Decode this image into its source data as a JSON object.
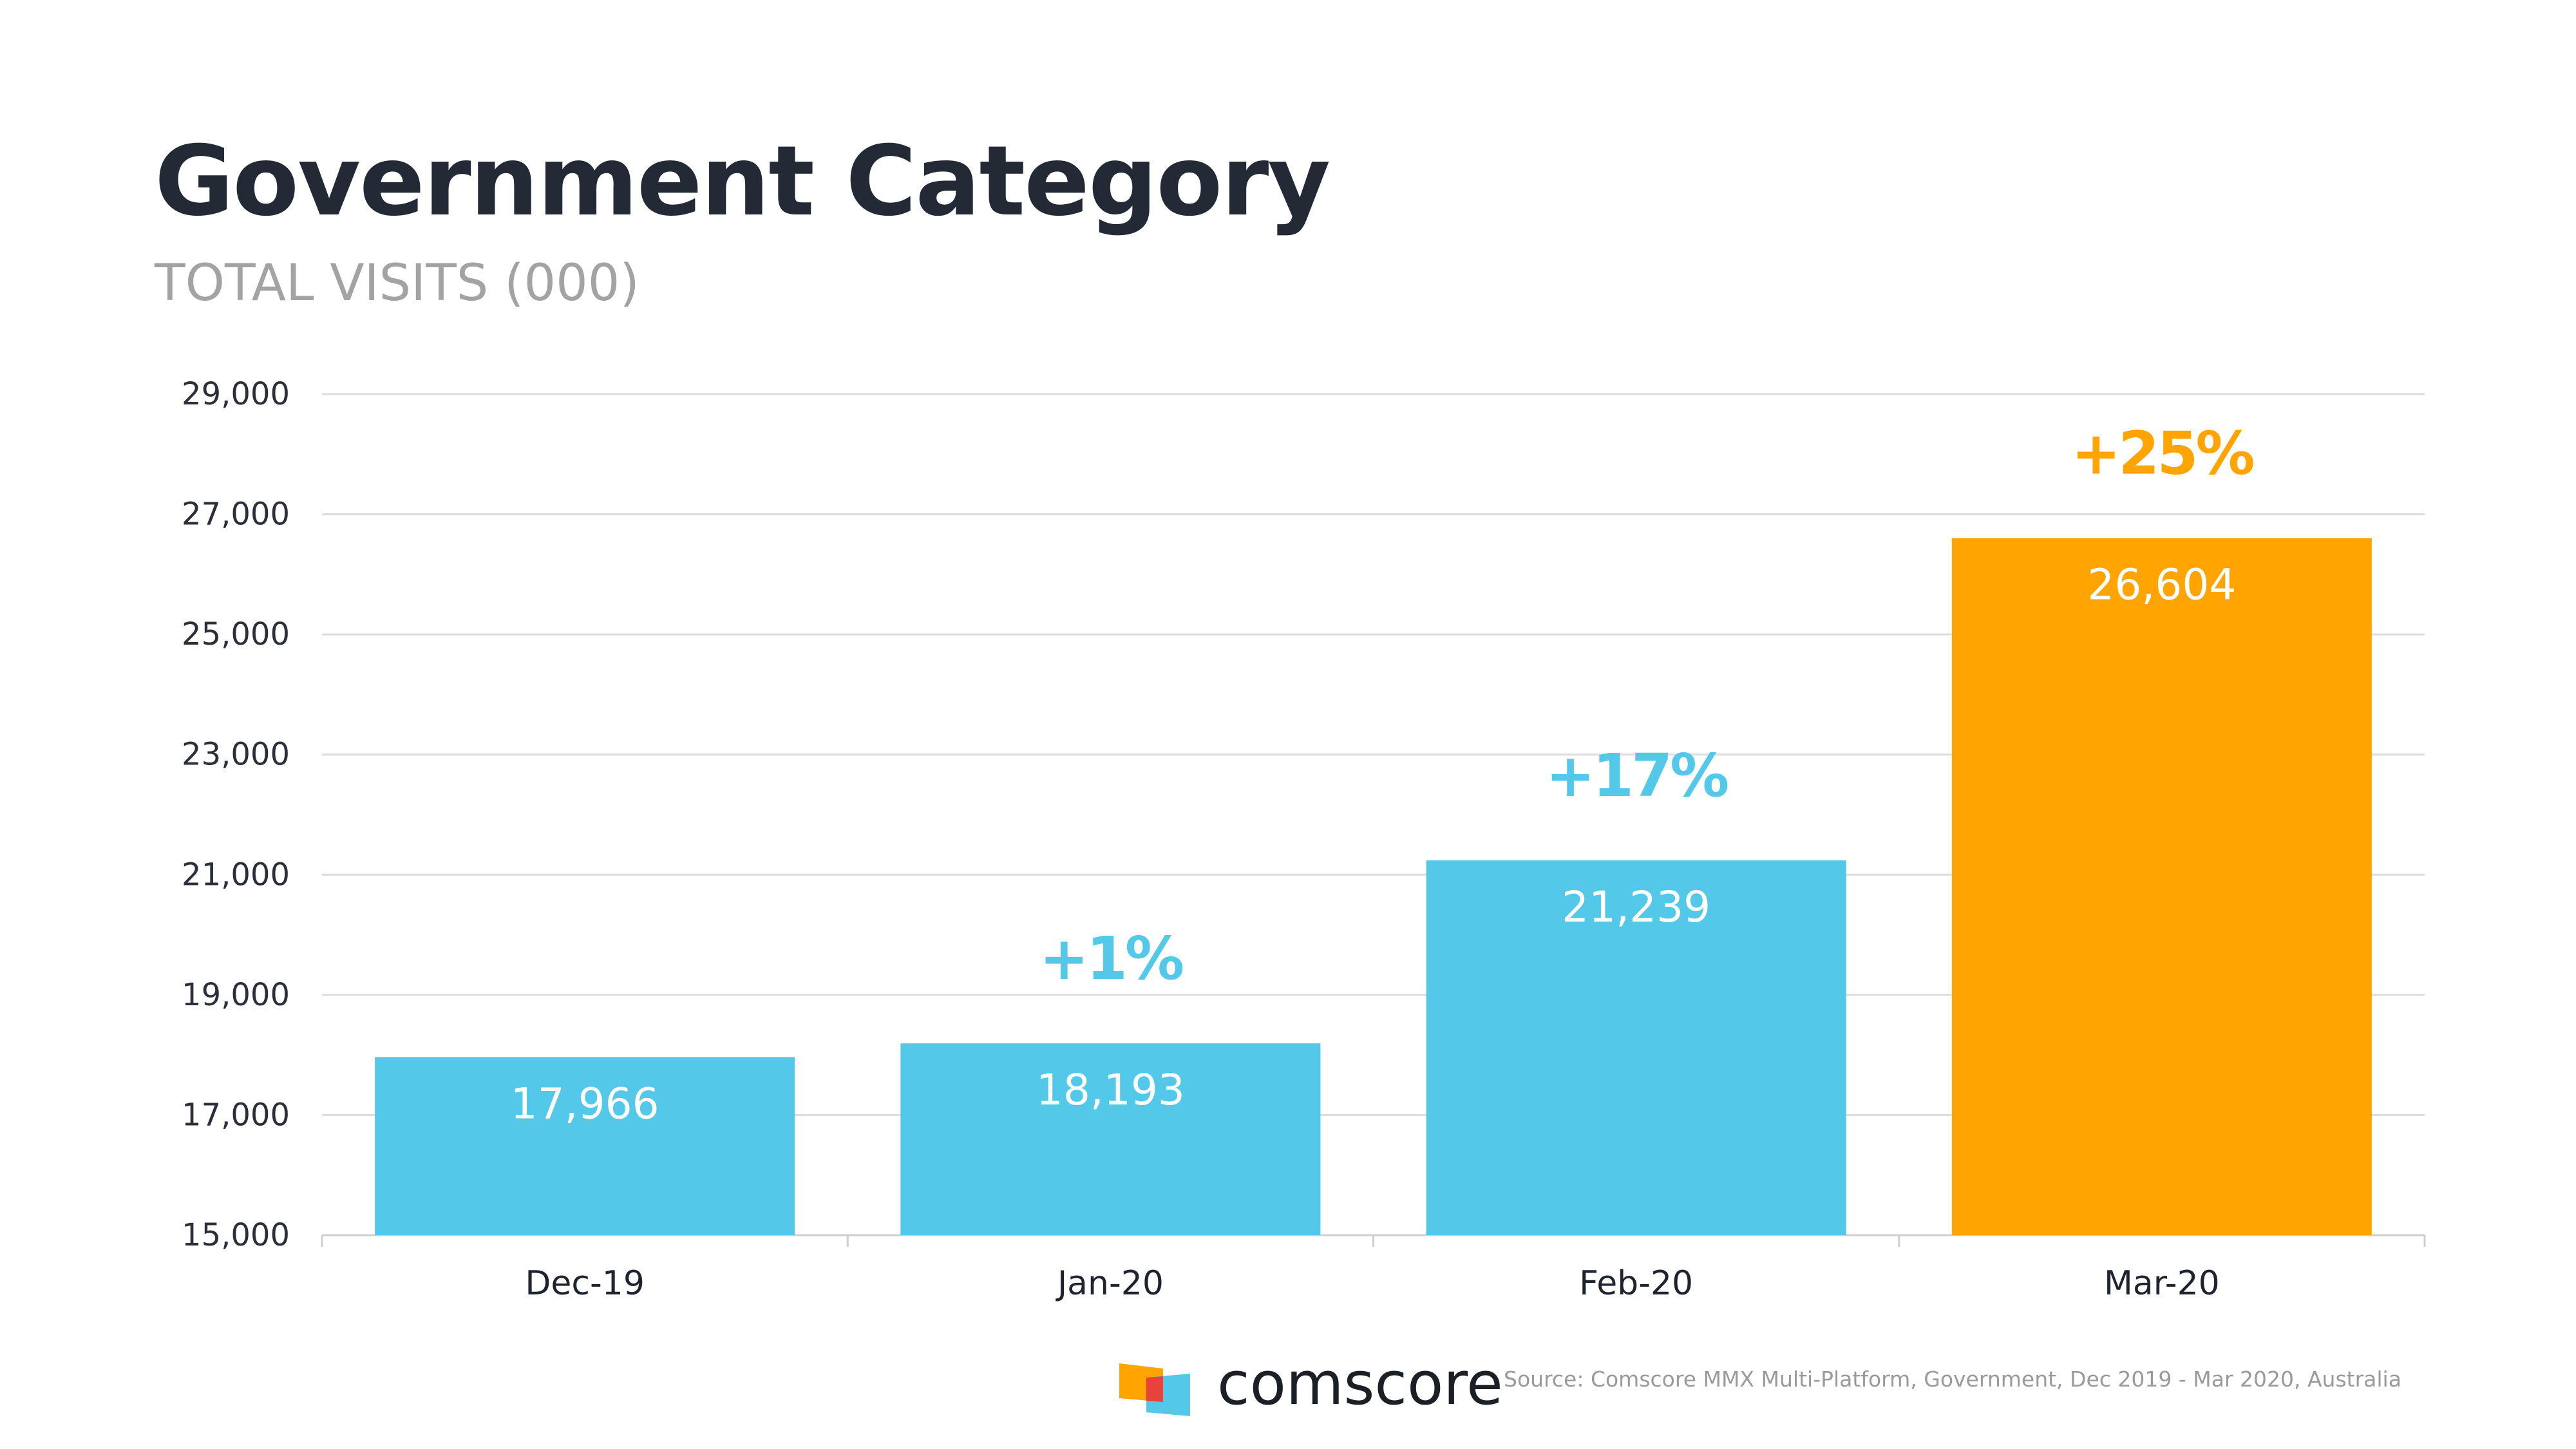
{
  "title": "Government Category",
  "subtitle": "TOTAL VISITS (000)",
  "chart_data": {
    "type": "bar",
    "categories": [
      "Dec-19",
      "Jan-20",
      "Feb-20",
      "Mar-20"
    ],
    "values": [
      17966,
      18193,
      21239,
      26604
    ],
    "value_labels": [
      "17,966",
      "18,193",
      "21,239",
      "26,604"
    ],
    "changes": [
      "",
      "+1%",
      "+17%",
      "+25%"
    ],
    "bar_colors": [
      "#54c8e8",
      "#54c8e8",
      "#54c8e8",
      "#ffa400"
    ],
    "change_colors": [
      "#54c8e8",
      "#54c8e8",
      "#54c8e8",
      "#ffa400"
    ],
    "ylim": [
      15000,
      29000
    ],
    "yticks": [
      15000,
      17000,
      19000,
      21000,
      23000,
      25000,
      27000,
      29000
    ],
    "ytick_labels": [
      "15,000",
      "17,000",
      "19,000",
      "21,000",
      "23,000",
      "25,000",
      "27,000",
      "29,000"
    ],
    "grid": true
  },
  "footer": {
    "brand": "comscore",
    "source": "Source: Comscore MMX Multi-Platform, Government, Dec 2019 - Mar 2020, Australia"
  },
  "icons": {
    "logo": "comscore-logo-icon"
  }
}
